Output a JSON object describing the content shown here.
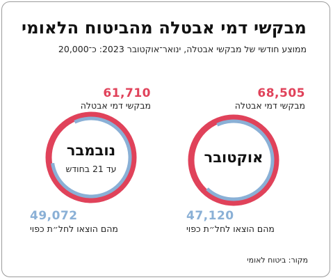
{
  "title": "מבקשי דמי אבטלה מהביטוח הלאומי",
  "subtitle": "ממוצע חודשי של מבקשי אבטלה, ינואר־אוקטובר 2023: כ־20,000",
  "source": "מקור: ביטוח לאומי",
  "colors": {
    "applicants": "#e0425a",
    "claimed": "#8ab0d6"
  },
  "chart_data": [
    {
      "type": "donut",
      "month": "אוקטובר",
      "note": "",
      "applicants": {
        "value": 68505,
        "display": "68,505",
        "label": "מבקשי דמי אבטלה"
      },
      "claimed": {
        "value": 47120,
        "display": "47,120",
        "label": "מהם הוצאו לחל״ת כפוי"
      }
    },
    {
      "type": "donut",
      "month": "נובמבר",
      "note": "עד 21 בחודש",
      "applicants": {
        "value": 61710,
        "display": "61,710",
        "label": "מבקשי דמי אבטלה"
      },
      "claimed": {
        "value": 49072,
        "display": "49,072",
        "label": "מהם הוצאו לחל״ת כפוי"
      }
    }
  ]
}
